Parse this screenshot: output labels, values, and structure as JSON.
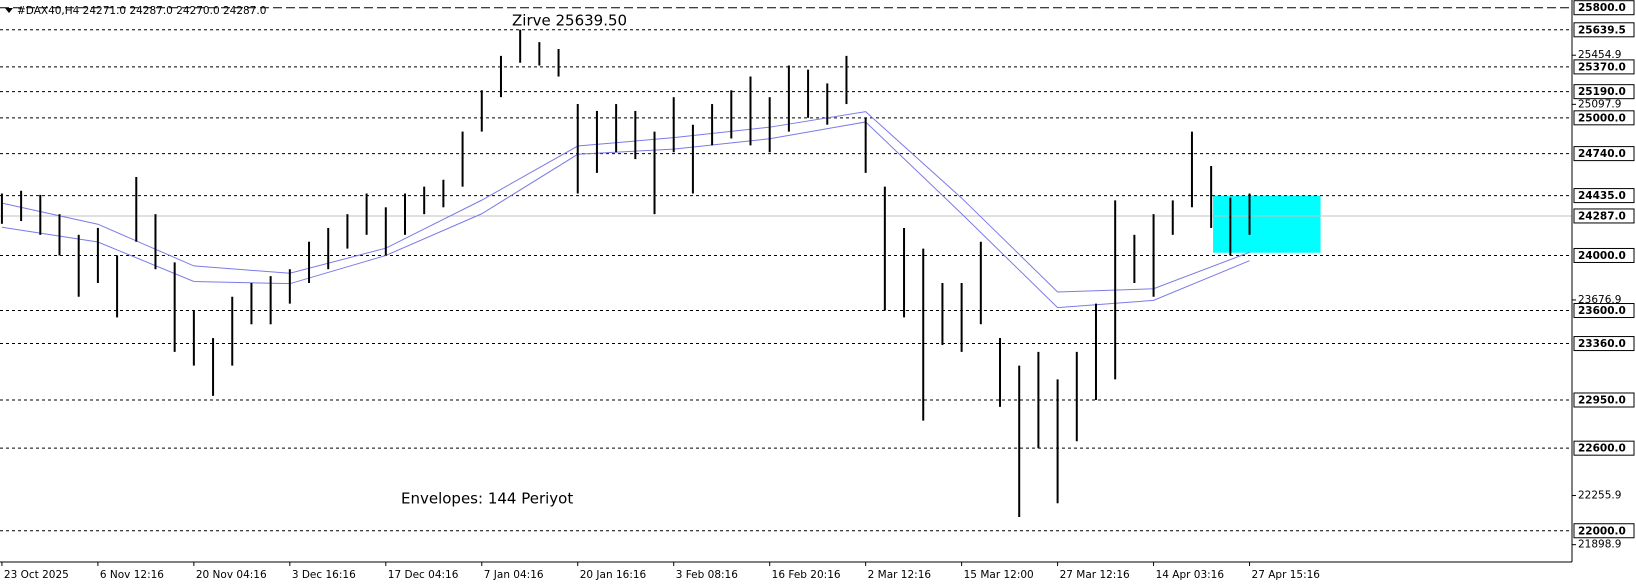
{
  "chart_data": {
    "type": "range_bar",
    "title": "#DAX40,H4  24271.0 24287.0 24270.0 24287.0",
    "annotations": [
      "Zirve 25639.50",
      "Envelopes: 144 Periyot"
    ],
    "annotation_color": "#c71585",
    "xlim": [
      -0.02,
      16.36
    ],
    "ylim": [
      21773,
      25856
    ],
    "xticks": [
      {
        "value": 0,
        "label": "23 Oct 2025"
      },
      {
        "value": 1,
        "label": "6 Nov 12:16"
      },
      {
        "value": 2,
        "label": "20 Nov 04:16"
      },
      {
        "value": 3,
        "label": "3 Dec 16:16"
      },
      {
        "value": 4,
        "label": "17 Dec 04:16"
      },
      {
        "value": 5,
        "label": "7 Jan 04:16"
      },
      {
        "value": 6,
        "label": "20 Jan 16:16"
      },
      {
        "value": 7,
        "label": "3 Feb 08:16"
      },
      {
        "value": 8,
        "label": "16 Feb 20:16"
      },
      {
        "value": 9,
        "label": "2 Mar 12:16"
      },
      {
        "value": 10,
        "label": "15 Mar 12:00"
      },
      {
        "value": 11,
        "label": "27 Mar 12:16"
      },
      {
        "value": 12,
        "label": "14 Apr 03:16"
      },
      {
        "value": 13,
        "label": "27 Apr 15:16"
      }
    ],
    "yticks": [
      {
        "value": 25454.9,
        "label": "25454.9"
      },
      {
        "value": 25097.9,
        "label": "25097.9"
      },
      {
        "value": 23676.9,
        "label": "23676.9"
      },
      {
        "value": 22255.9,
        "label": "22255.9"
      },
      {
        "value": 21898.9,
        "label": "21898.9"
      }
    ],
    "levels": [
      {
        "value": 25800,
        "label": "25800.0",
        "style": "long-dash"
      },
      {
        "value": 25639.5,
        "label": "25639.5",
        "style": "dash"
      },
      {
        "value": 25370,
        "label": "25370.0",
        "style": "dash"
      },
      {
        "value": 25190,
        "label": "25190.0",
        "style": "dash"
      },
      {
        "value": 25000,
        "label": "25000.0",
        "style": "dash"
      },
      {
        "value": 24740,
        "label": "24740.0",
        "style": "dash"
      },
      {
        "value": 24435,
        "label": "24435.0",
        "style": "dash"
      },
      {
        "value": 24287,
        "label": "24287.0",
        "style": "solid"
      },
      {
        "value": 24000,
        "label": "24000.0",
        "style": "dash"
      },
      {
        "value": 23600,
        "label": "23600.0",
        "style": "dash"
      },
      {
        "value": 23360,
        "label": "23360.0",
        "style": "dash"
      },
      {
        "value": 22950,
        "label": "22950.0",
        "style": "dash"
      },
      {
        "value": 22600,
        "label": "22600.0",
        "style": "dash"
      },
      {
        "value": 22000,
        "label": "22000.0",
        "style": "dash"
      }
    ],
    "zone": {
      "x": [
        12.62,
        13.74
      ],
      "y": [
        24020,
        24435
      ],
      "color": "#00ffff"
    },
    "bars": {
      "color": "#000000",
      "x": [
        0,
        0.2,
        0.4,
        0.6,
        0.8,
        1,
        1.2,
        1.4,
        1.6,
        1.8,
        2,
        2.2,
        2.4,
        2.6,
        2.8,
        3,
        3.2,
        3.4,
        3.6,
        3.8,
        4,
        4.2,
        4.4,
        4.6,
        4.8,
        5,
        5.2,
        5.4,
        5.6,
        5.8,
        6,
        6.2,
        6.4,
        6.6,
        6.8,
        7,
        7.2,
        7.4,
        7.6,
        7.8,
        8,
        8.2,
        8.4,
        8.6,
        8.8,
        9,
        9.2,
        9.4,
        9.6,
        9.8,
        10,
        10.2,
        10.4,
        10.6,
        10.8,
        11,
        11.2,
        11.4,
        11.6,
        11.8,
        12,
        12.2,
        12.4,
        12.6,
        12.8,
        13
      ],
      "high": [
        24450,
        24470,
        24440,
        24300,
        24150,
        24200,
        24000,
        24570,
        24300,
        23950,
        23600,
        23400,
        23700,
        23800,
        23850,
        23900,
        24100,
        24200,
        24300,
        24450,
        24350,
        24450,
        24500,
        24550,
        24900,
        25200,
        25450,
        25640,
        25550,
        25500,
        25100,
        25050,
        25100,
        25050,
        24900,
        25150,
        24950,
        25100,
        25200,
        25300,
        25150,
        25380,
        25350,
        25250,
        25450,
        25000,
        24500,
        24200,
        24050,
        23800,
        23800,
        24100,
        23400,
        23200,
        23300,
        23100,
        23300,
        23650,
        24400,
        24150,
        24300,
        24400,
        24900,
        24650,
        24420,
        24450
      ],
      "low": [
        24230,
        24250,
        24150,
        24000,
        23700,
        23800,
        23550,
        24100,
        23900,
        23300,
        23200,
        22980,
        23200,
        23500,
        23500,
        23650,
        23800,
        23900,
        24050,
        24150,
        24000,
        24150,
        24300,
        24350,
        24500,
        24900,
        25150,
        25400,
        25380,
        25300,
        24450,
        24600,
        24750,
        24700,
        24300,
        24750,
        24450,
        24800,
        24850,
        24800,
        24750,
        24900,
        25000,
        24950,
        25100,
        24600,
        23600,
        23550,
        22800,
        23350,
        23300,
        23500,
        22900,
        22100,
        22600,
        22200,
        22650,
        22950,
        23100,
        23800,
        23700,
        24150,
        24350,
        24200,
        24000,
        24150
      ]
    },
    "series": [
      {
        "color": "#7b7be8",
        "x": [
          0,
          1,
          2,
          3,
          4,
          5,
          6,
          7,
          8,
          9,
          10,
          11,
          12,
          13
        ],
        "values": [
          24380,
          24227,
          23924,
          23871,
          24053,
          24402,
          24795,
          24856,
          24932,
          25045,
          24417,
          23735,
          23758,
          24023
        ]
      },
      {
        "color": "#7b7be8",
        "x": [
          0,
          1,
          2,
          3,
          4,
          5,
          6,
          7,
          8,
          9,
          10,
          11,
          12,
          13
        ],
        "values": [
          24205,
          24098,
          23811,
          23795,
          24000,
          24303,
          24735,
          24773,
          24848,
          24970,
          24303,
          23621,
          23674,
          23962
        ]
      }
    ]
  }
}
